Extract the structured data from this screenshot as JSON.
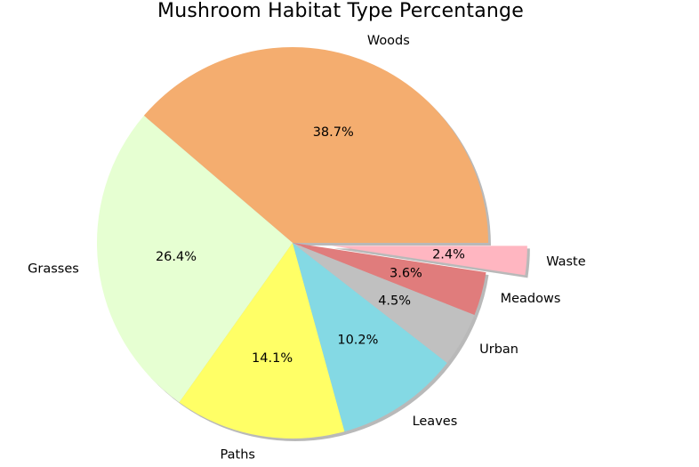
{
  "chart_data": {
    "type": "pie",
    "title": "Mushroom Habitat Type Percentange",
    "slices": [
      {
        "label": "Woods",
        "value": 38.7,
        "pct_label": "38.7%",
        "color": "#f4ad6f",
        "explode": false
      },
      {
        "label": "Grasses",
        "value": 26.4,
        "pct_label": "26.4%",
        "color": "#e6ffd2",
        "explode": false
      },
      {
        "label": "Paths",
        "value": 14.1,
        "pct_label": "14.1%",
        "color": "#ffff66",
        "explode": false
      },
      {
        "label": "Leaves",
        "value": 10.2,
        "pct_label": "10.2%",
        "color": "#84d9e4",
        "explode": false
      },
      {
        "label": "Urban",
        "value": 4.5,
        "pct_label": "4.5%",
        "color": "#c0c0c0",
        "explode": false
      },
      {
        "label": "Meadows",
        "value": 3.6,
        "pct_label": "3.6%",
        "color": "#e07c7c",
        "explode": false
      },
      {
        "label": "Waste",
        "value": 2.4,
        "pct_label": "2.4%",
        "color": "#ffb6c1",
        "explode": true
      }
    ],
    "start_angle_deg": 0,
    "direction": "counterclockwise",
    "shadow": true
  }
}
